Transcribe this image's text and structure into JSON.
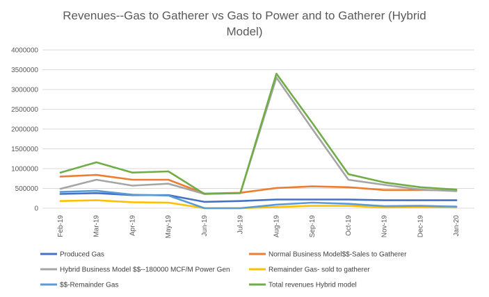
{
  "chart_data": {
    "type": "line",
    "title_lines": [
      "Revenues--Gas to Gatherer vs Gas to Power and to Gatherer (Hybrid",
      "Model)"
    ],
    "xlabel": "",
    "ylabel": "",
    "categories": [
      "Feb-19",
      "Mar-19",
      "Apr-19",
      "May-19",
      "Jun-19",
      "Jul-19",
      "Aug-19",
      "Sep-19",
      "Oct-19",
      "Nov-19",
      "Dec-19",
      "Jan-20"
    ],
    "ylim": [
      0,
      4000000
    ],
    "yticks": [
      0,
      500000,
      1000000,
      1500000,
      2000000,
      2500000,
      3000000,
      3500000,
      4000000
    ],
    "ytick_labels": [
      "0",
      "500000",
      "1000000",
      "1500000",
      "2000000",
      "2500000",
      "3000000",
      "3500000",
      "4000000"
    ],
    "grid": true,
    "legend_position": "bottom",
    "series": [
      {
        "name": "Produced Gas",
        "color": "#4472C4",
        "values": [
          360000,
          380000,
          330000,
          330000,
          160000,
          180000,
          220000,
          220000,
          220000,
          200000,
          200000,
          200000
        ]
      },
      {
        "name": "Normal Business Model$$-Sales to Gatherer",
        "color": "#ED7D31",
        "values": [
          800000,
          840000,
          720000,
          720000,
          370000,
          390000,
          510000,
          550000,
          530000,
          460000,
          460000,
          450000
        ]
      },
      {
        "name": "Hybrid Business Model $$--180000 MCF/M Power Gen",
        "color": "#A5A5A5",
        "values": [
          490000,
          720000,
          570000,
          620000,
          360000,
          380000,
          3300000,
          2000000,
          720000,
          590000,
          470000,
          430000
        ]
      },
      {
        "name": "Remainder Gas- sold to gatherer",
        "color": "#FFC000",
        "values": [
          180000,
          200000,
          150000,
          140000,
          0,
          0,
          30000,
          60000,
          60000,
          20000,
          30000,
          20000
        ]
      },
      {
        "name": "$$-Remainder Gas",
        "color": "#5B9BD5",
        "values": [
          410000,
          440000,
          340000,
          320000,
          0,
          0,
          90000,
          140000,
          110000,
          50000,
          60000,
          40000
        ]
      },
      {
        "name": "Total revenues Hybrid model",
        "color": "#70AD47",
        "values": [
          900000,
          1160000,
          900000,
          930000,
          360000,
          380000,
          3400000,
          2150000,
          860000,
          650000,
          530000,
          470000
        ]
      }
    ]
  }
}
